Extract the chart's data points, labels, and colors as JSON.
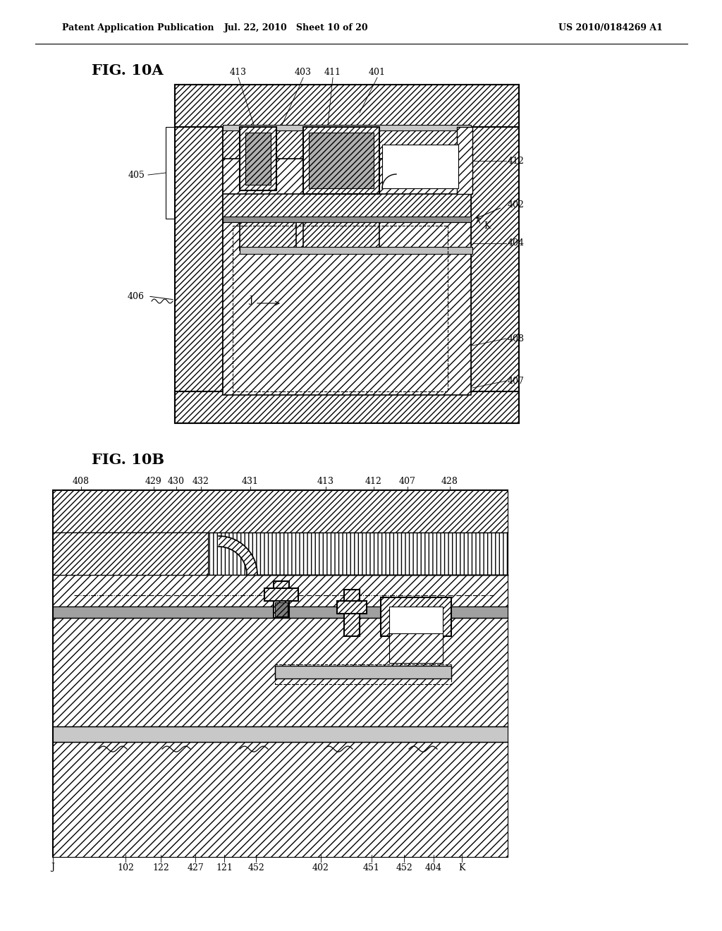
{
  "header_left": "Patent Application Publication",
  "header_mid": "Jul. 22, 2010   Sheet 10 of 20",
  "header_right": "US 2010/0184269 A1",
  "fig10a_label": "FIG. 10A",
  "fig10b_label": "FIG. 10B",
  "bg_color": "#ffffff"
}
